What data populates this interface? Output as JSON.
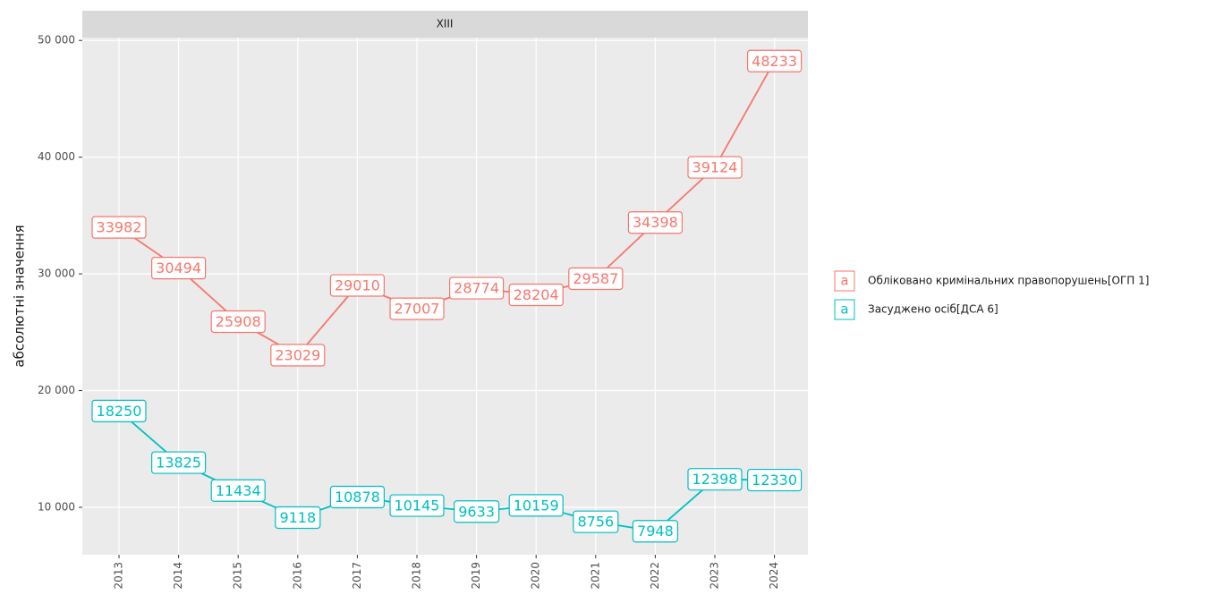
{
  "chart_data": {
    "type": "line",
    "title": "XIII",
    "y_label": "абсолютні значення",
    "categories": [
      "2013",
      "2014",
      "2015",
      "2016",
      "2017",
      "2018",
      "2019",
      "2020",
      "2021",
      "2022",
      "2023",
      "2024"
    ],
    "series": [
      {
        "name": "Обліковано кримінальних правопорушень[ОГП 1]",
        "color": "#f8766d",
        "values": [
          33982,
          30494,
          25908,
          23029,
          29010,
          27007,
          28774,
          28204,
          29587,
          34398,
          39124,
          48233
        ]
      },
      {
        "name": "Засуджено осіб[ДСА 6]",
        "color": "#00bfc4",
        "values": [
          18250,
          13825,
          11434,
          9118,
          10878,
          10145,
          9633,
          10159,
          8756,
          7948,
          12398,
          12330
        ]
      }
    ],
    "ylim": [
      5934,
      50247
    ],
    "yticks": [
      {
        "value": 10000,
        "label": "10 000"
      },
      {
        "value": 20000,
        "label": "20 000"
      },
      {
        "value": 30000,
        "label": "30 000"
      },
      {
        "value": 40000,
        "label": "40 000"
      },
      {
        "value": 50000,
        "label": "50 000"
      }
    ],
    "legend_key_text": "a",
    "grid": true
  }
}
